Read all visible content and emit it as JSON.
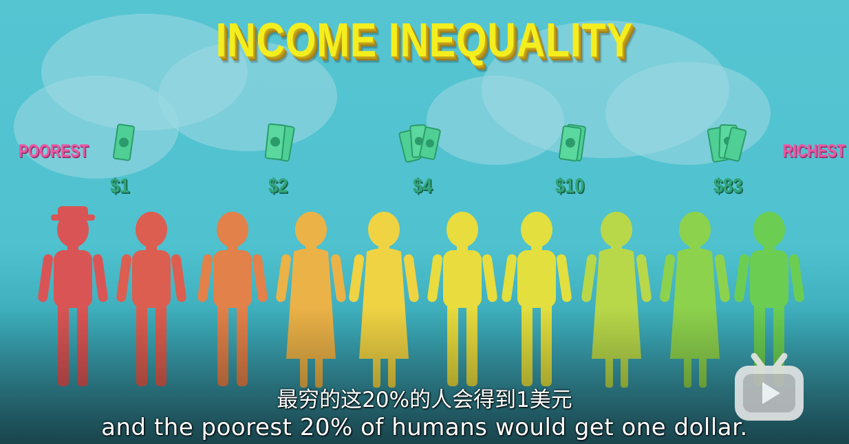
{
  "video": {
    "title": "INCOME INEQUALITY",
    "labels": {
      "left": "POOREST",
      "right": "RICHEST"
    },
    "amounts": [
      "$1",
      "$2",
      "$4",
      "$10",
      "$83"
    ],
    "people_colors": [
      "#d95555",
      "#db5e50",
      "#e2814a",
      "#ebb247",
      "#efd343",
      "#e8dc3e",
      "#e2df3f",
      "#b8d84a",
      "#8dd24d",
      "#6bce52"
    ],
    "subtitles": {
      "zh": "最穷的这20%的人会得到1美元",
      "en": "and the poorest 20% of humans would get one dollar."
    }
  },
  "player": {
    "watermark_icon": "bilibili-tv-icon"
  }
}
